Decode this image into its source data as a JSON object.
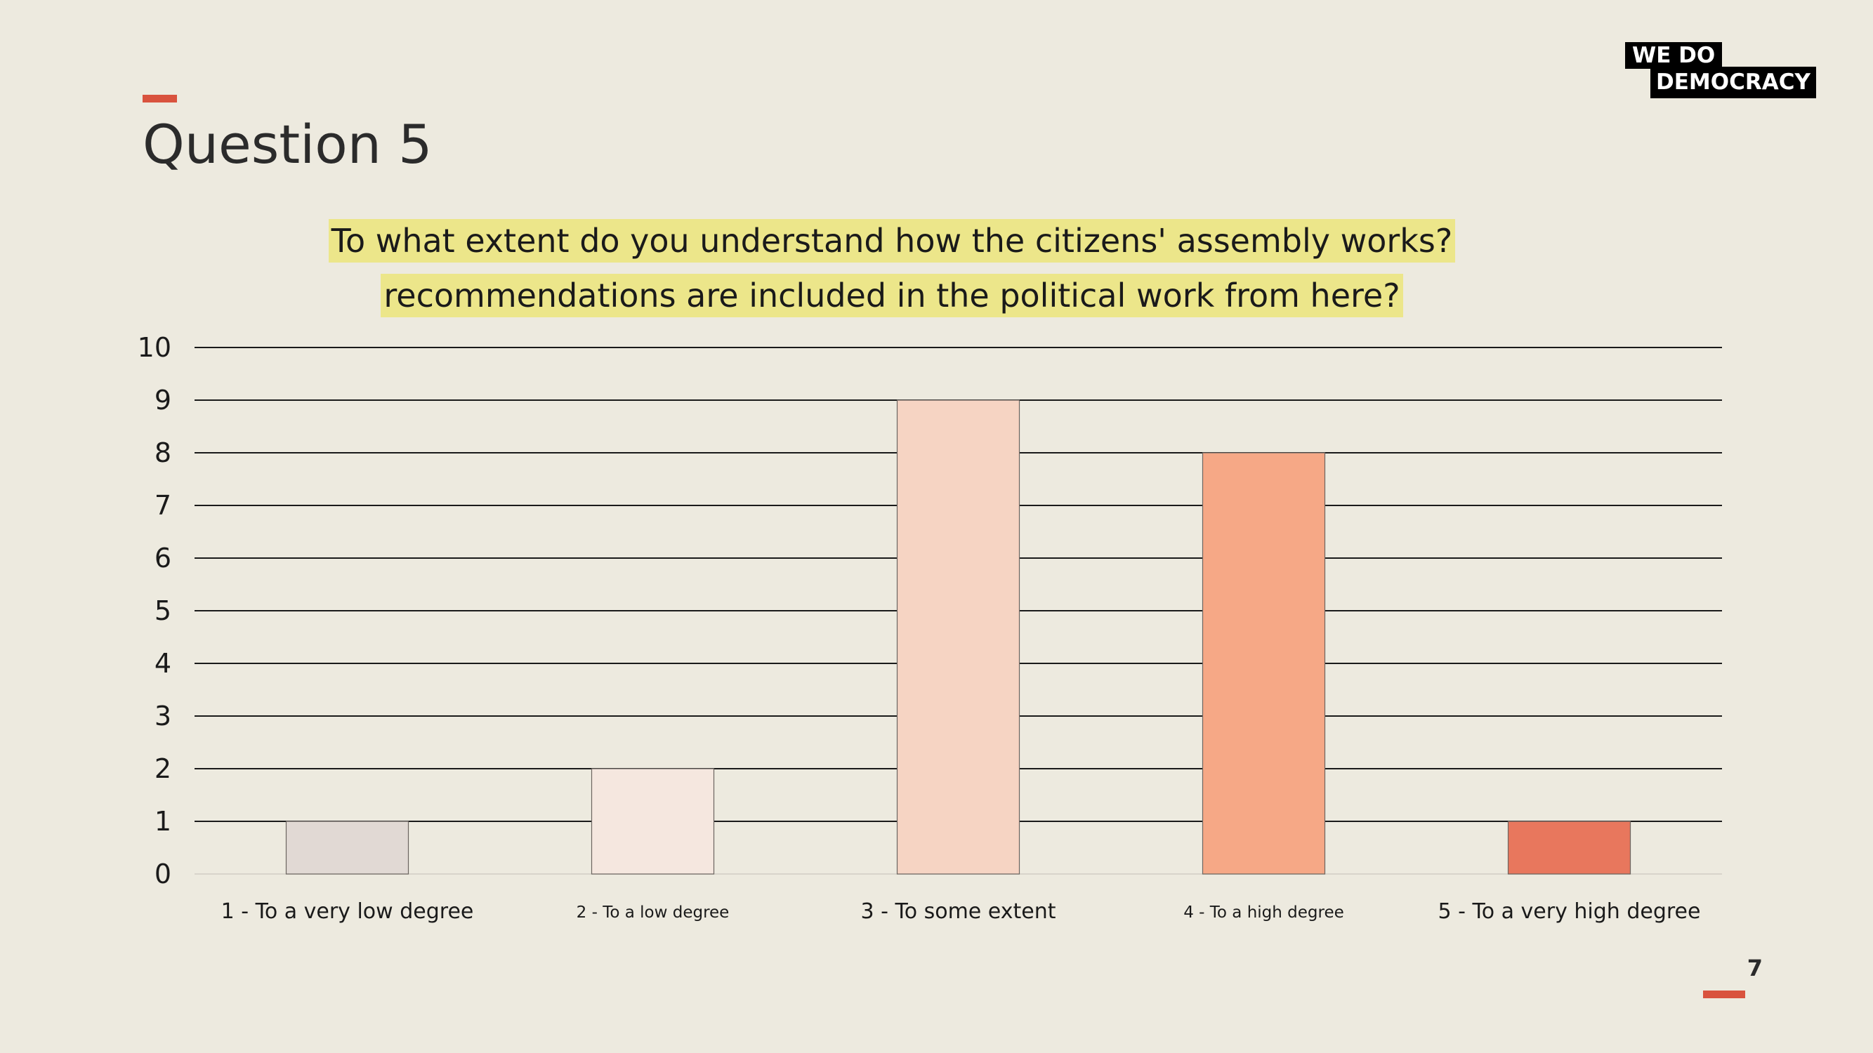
{
  "slide": {
    "title": "Question 5",
    "page_number": "7"
  },
  "logo": {
    "line1": "WE  DO",
    "line2": "DEMOCRACY"
  },
  "colors": {
    "background": "#edeadf",
    "accent": "#d9533e",
    "highlight": "#ece68a"
  },
  "chart_data": {
    "type": "bar",
    "title_lines": [
      "To what extent do you understand how the citizens' assembly works?",
      "recommendations are included in the political work from here?"
    ],
    "categories": [
      "1 - To a very low degree",
      "2 - To a low degree",
      "3 - To some extent",
      "4 - To a high degree",
      "5 - To a very high degree"
    ],
    "values": [
      1,
      2,
      9,
      8,
      1
    ],
    "bar_colors": [
      "#e1d9d4",
      "#f5e7df",
      "#f6d4c3",
      "#f6a886",
      "#e8775d"
    ],
    "category_label_sizes": [
      "large",
      "small",
      "large",
      "small",
      "large"
    ],
    "ylim": [
      0,
      10
    ],
    "yticks": [
      0,
      1,
      2,
      3,
      4,
      5,
      6,
      7,
      8,
      9,
      10
    ],
    "grid": true,
    "legend": "none"
  }
}
